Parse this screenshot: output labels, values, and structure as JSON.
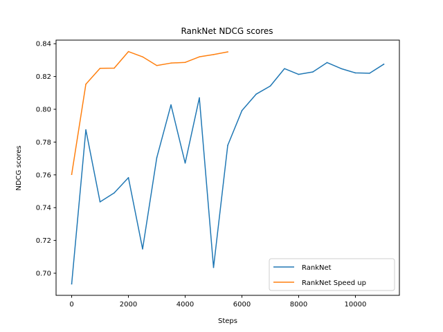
{
  "chart_data": {
    "type": "line",
    "title": "RankNet NDCG scores",
    "xlabel": "Steps",
    "ylabel": "NDCG scores",
    "xlim": [
      -550,
      11550
    ],
    "ylim": [
      0.6865,
      0.8422
    ],
    "xticks": [
      0,
      2000,
      4000,
      6000,
      8000,
      10000
    ],
    "yticks": [
      0.7,
      0.72,
      0.74,
      0.76,
      0.78,
      0.8,
      0.82,
      0.84
    ],
    "ytick_labels": [
      "0.70",
      "0.72",
      "0.74",
      "0.76",
      "0.78",
      "0.80",
      "0.82",
      "0.84"
    ],
    "grid": false,
    "legend_position": "lower-right",
    "series": [
      {
        "name": "RankNet",
        "color": "#1f77b4",
        "x": [
          0,
          500,
          1000,
          1500,
          2000,
          2500,
          3000,
          3500,
          4000,
          4500,
          5000,
          5500,
          6000,
          6500,
          7000,
          7500,
          8000,
          8500,
          9000,
          9500,
          10000,
          10500,
          11000
        ],
        "y": [
          0.6935,
          0.7875,
          0.7435,
          0.749,
          0.7583,
          0.7148,
          0.7705,
          0.8027,
          0.7672,
          0.807,
          0.7035,
          0.778,
          0.7992,
          0.8092,
          0.8142,
          0.8248,
          0.8213,
          0.8228,
          0.8285,
          0.8248,
          0.8222,
          0.822,
          0.8275
        ]
      },
      {
        "name": "RankNet Speed up",
        "color": "#ff7f0e",
        "x": [
          0,
          500,
          1000,
          1500,
          2000,
          2500,
          3000,
          3500,
          4000,
          4500,
          5000,
          5500
        ],
        "y": [
          0.7603,
          0.8153,
          0.825,
          0.8251,
          0.8352,
          0.832,
          0.8267,
          0.8282,
          0.8286,
          0.832,
          0.8334,
          0.835
        ]
      }
    ]
  }
}
